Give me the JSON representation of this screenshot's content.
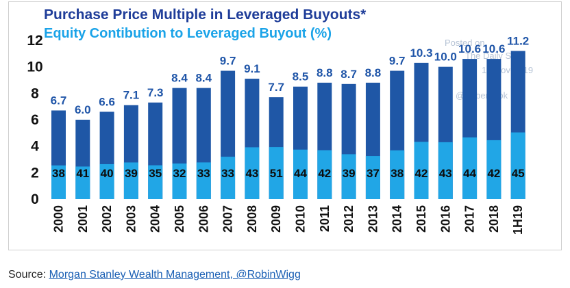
{
  "colors": {
    "multiple_bar": "#1f57a6",
    "equity_bar": "#21a6e6",
    "title_primary": "#1f3d99",
    "title_secondary": "#1aa3e8",
    "link": "#1a5fb4"
  },
  "chart_data": {
    "type": "bar",
    "title": "Purchase Price Multiple in Leveraged Buyouts*",
    "subtitle": "Equity Contibution to Leveraged Buyout (%)",
    "categories": [
      "2000",
      "2001",
      "2002",
      "2003",
      "2004",
      "2005",
      "2006",
      "2007",
      "2008",
      "2009",
      "2010",
      "2011",
      "2012",
      "2013",
      "2014",
      "2015",
      "2016",
      "2017",
      "2018",
      "1H19"
    ],
    "ylim": [
      0,
      12
    ],
    "yticks": [
      "0",
      "2",
      "4",
      "6",
      "8",
      "10",
      "12"
    ],
    "series": [
      {
        "name": "Purchase Price Multiple in Leveraged Buyouts*",
        "values": [
          6.7,
          6.0,
          6.6,
          7.1,
          7.3,
          8.4,
          8.4,
          9.7,
          9.1,
          7.7,
          8.5,
          8.8,
          8.7,
          8.8,
          9.7,
          10.3,
          10.0,
          10.6,
          10.6,
          11.2
        ],
        "labels": [
          "6.7",
          "6.0",
          "6.6",
          "7.1",
          "7.3",
          "8.4",
          "8.4",
          "9.7",
          "9.1",
          "7.7",
          "8.5",
          "8.8",
          "8.7",
          "8.8",
          "9.7",
          "10.3",
          "10.0",
          "10.6",
          "10.6",
          "11.2"
        ]
      },
      {
        "name": "Equity Contibution to Leveraged Buyout (%)",
        "values": [
          38,
          41,
          40,
          39,
          35,
          32,
          33,
          33,
          43,
          51,
          44,
          42,
          39,
          37,
          38,
          42,
          43,
          44,
          42,
          45
        ],
        "labels": [
          "38",
          "41",
          "40",
          "39",
          "35",
          "32",
          "33",
          "33",
          "43",
          "51",
          "44",
          "42",
          "39",
          "37",
          "38",
          "42",
          "43",
          "44",
          "42",
          "45"
        ]
      }
    ],
    "grid": false,
    "legend": "none"
  },
  "watermark": {
    "line1": "Posted on",
    "line2": "The Daily Shot",
    "line3": "13-Nov-2019",
    "line4": "@SoberLook"
  },
  "source": {
    "prefix": "Source: ",
    "link_text": "Morgan Stanley Wealth Management, @RobinWigg"
  }
}
